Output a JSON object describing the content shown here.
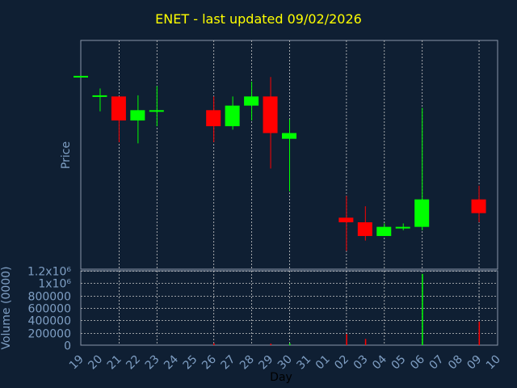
{
  "colors": {
    "background": "#0f1f33",
    "frame": "#8a96a8",
    "grid": "#c8c8c8",
    "axis_text": "#7f9fc4",
    "title": "#ffff00",
    "up": "#00ff00",
    "down": "#ff0000"
  },
  "chart_data": {
    "type": "candlestick",
    "title": "ENET - last updated 09/02/2026",
    "xlabel": "Day",
    "price_ylabel": "Price",
    "volume_ylabel": "Volume (0000)",
    "x_tick_labels": [
      "19",
      "20",
      "21",
      "22",
      "23",
      "24",
      "25",
      "26",
      "27",
      "28",
      "29",
      "30",
      "31",
      "01",
      "02",
      "03",
      "04",
      "05",
      "06",
      "07",
      "08",
      "09",
      "10"
    ],
    "price_y_range": [
      0,
      100
    ],
    "volume_y_range": [
      0,
      1200000
    ],
    "volume_tick_labels": [
      "0",
      "200000",
      "400000",
      "600000",
      "800000",
      "1x10⁶",
      "1.2x10⁶"
    ],
    "candles": [
      {
        "day": "19",
        "open": 84.5,
        "close": 84.5,
        "high": 84.5,
        "low": 84.5
      },
      {
        "day": "20",
        "open": 76.0,
        "close": 76.0,
        "high": 79.0,
        "low": 69.0
      },
      {
        "day": "21",
        "open": 75.5,
        "close": 65.0,
        "high": 75.5,
        "low": 55.5
      },
      {
        "day": "22",
        "open": 65.0,
        "close": 69.5,
        "high": 76.0,
        "low": 55.0
      },
      {
        "day": "23",
        "open": 69.5,
        "close": 69.5,
        "high": 80.0,
        "low": 62.5
      },
      {
        "day": "26",
        "open": 69.5,
        "close": 62.5,
        "high": 75.5,
        "low": 55.5
      },
      {
        "day": "27",
        "open": 62.5,
        "close": 71.5,
        "high": 75.5,
        "low": 61.0
      },
      {
        "day": "28",
        "open": 71.5,
        "close": 75.5,
        "high": 82.0,
        "low": 65.0
      },
      {
        "day": "29",
        "open": 75.5,
        "close": 59.5,
        "high": 84.0,
        "low": 44.0
      },
      {
        "day": "30",
        "open": 57.0,
        "close": 59.5,
        "high": 65.5,
        "low": 34.0
      },
      {
        "day": "02",
        "open": 22.5,
        "close": 20.5,
        "high": 32.0,
        "low": 8.0
      },
      {
        "day": "03",
        "open": 20.5,
        "close": 14.5,
        "high": 27.5,
        "low": 12.5
      },
      {
        "day": "04",
        "open": 14.5,
        "close": 18.5,
        "high": 20.0,
        "low": 14.5
      },
      {
        "day": "05",
        "open": 18.5,
        "close": 18.5,
        "high": 20.0,
        "low": 17.0
      },
      {
        "day": "06",
        "open": 18.5,
        "close": 30.5,
        "high": 70.5,
        "low": 17.0
      },
      {
        "day": "09",
        "open": 30.5,
        "close": 24.5,
        "high": 36.5,
        "low": 20.5
      }
    ],
    "volumes": [
      {
        "day": "26",
        "value": 30000,
        "color": "down"
      },
      {
        "day": "29",
        "value": 25000,
        "color": "down"
      },
      {
        "day": "30",
        "value": 30000,
        "color": "up"
      },
      {
        "day": "02",
        "value": 180000,
        "color": "down"
      },
      {
        "day": "03",
        "value": 100000,
        "color": "down"
      },
      {
        "day": "06",
        "value": 1150000,
        "color": "up"
      },
      {
        "day": "09",
        "value": 380000,
        "color": "down"
      }
    ],
    "grid": true
  }
}
